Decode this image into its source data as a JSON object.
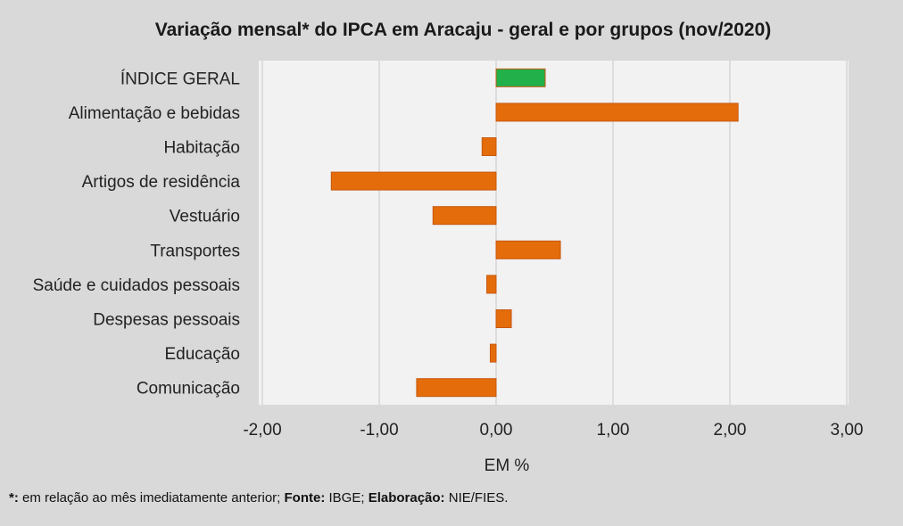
{
  "chart_data": {
    "type": "bar",
    "orientation": "horizontal",
    "title": "Variação  mensal*  do IPCA em Aracaju  - geral e por grupos  (nov/2020)",
    "xlabel": "EM %",
    "ylabel": "",
    "xlim": [
      -2,
      3
    ],
    "xticks": [
      -2,
      -1,
      0,
      1,
      2,
      3
    ],
    "xtick_labels": [
      "-2,00",
      "-1,00",
      "0,00",
      "1,00",
      "2,00",
      "3,00"
    ],
    "grid": true,
    "categories": [
      "ÍNDICE GERAL",
      "Alimentação e bebidas",
      "Habitação",
      "Artigos de residência",
      "Vestuário",
      "Transportes",
      "Saúde e cuidados pessoais",
      "Despesas pessoais",
      "Educação",
      "Comunicação"
    ],
    "values": [
      0.42,
      2.07,
      -0.12,
      -1.41,
      -0.54,
      0.55,
      -0.08,
      0.13,
      -0.05,
      -0.68
    ],
    "colors": [
      "#22b04b",
      "#e46c0a",
      "#e46c0a",
      "#e46c0a",
      "#e46c0a",
      "#e46c0a",
      "#e46c0a",
      "#e46c0a",
      "#e46c0a",
      "#e46c0a"
    ]
  },
  "style": {
    "background": "#d9d9d9",
    "plot_background": "#f2f2f2",
    "grid_color": "#c8c8c8",
    "bar_border": "#c65911"
  },
  "footnote": {
    "star_label": "*:",
    "star_text": " em relação ao mês imediatamente  anterior; ",
    "source_label": "Fonte:",
    "source_text": " IBGE; ",
    "elaboration_label": "Elaboração:",
    "elaboration_text": " NIE/FIES."
  }
}
